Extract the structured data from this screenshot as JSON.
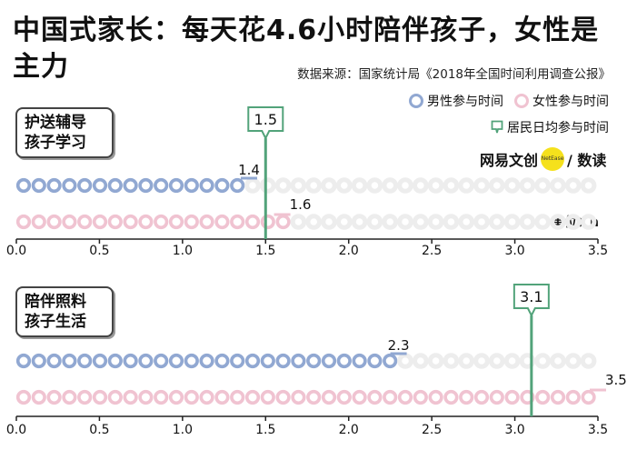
{
  "header": {
    "title": "中国式家长：每天花4.6小时陪伴孩子，女性是主力",
    "source": "数据来源：国家统计局《2018年全国时间利用调查公报》",
    "unit": "单位：h"
  },
  "brand": {
    "left": "网易文创",
    "dot": "NetEase",
    "right": "/ 数读"
  },
  "legend": {
    "male": "男性参与时间",
    "female": "女性参与时间",
    "resident": "居民日均参与时间"
  },
  "colors": {
    "male": "#91a8d2",
    "female": "#f0c3d1",
    "resident": "#52a37a",
    "track": "#ededed"
  },
  "chart_data": [
    {
      "type": "bar",
      "category_label": "护送辅导\n孩子学习",
      "xlim": [
        0,
        3.5
      ],
      "xticks": [
        "0.0",
        "0.5",
        "1.0",
        "1.5",
        "2.0",
        "2.5",
        "3.0",
        "3.5"
      ],
      "series": [
        {
          "name": "男性参与时间",
          "value": 1.4,
          "label": "1.4"
        },
        {
          "name": "女性参与时间",
          "value": 1.6,
          "label": "1.6"
        }
      ],
      "resident_average": {
        "value": 1.5,
        "label": "1.5"
      }
    },
    {
      "type": "bar",
      "category_label": "陪伴照料\n孩子生活",
      "xlim": [
        0,
        3.5
      ],
      "xticks": [
        "0.0",
        "0.5",
        "1.0",
        "1.5",
        "2.0",
        "2.5",
        "3.0",
        "3.5"
      ],
      "series": [
        {
          "name": "男性参与时间",
          "value": 2.3,
          "label": "2.3"
        },
        {
          "name": "女性参与时间",
          "value": 3.5,
          "label": "3.5"
        }
      ],
      "resident_average": {
        "value": 3.1,
        "label": "3.1"
      }
    }
  ]
}
